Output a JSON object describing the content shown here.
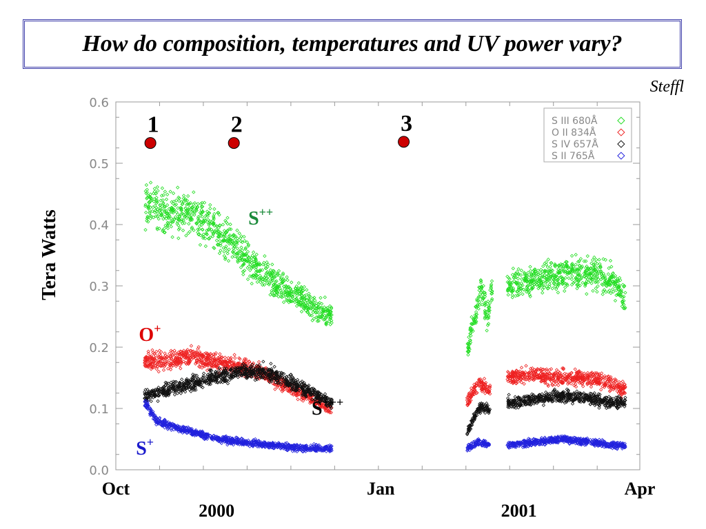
{
  "slide": {
    "title": "How do composition, temperatures and UV power vary?",
    "author": "Steffl"
  },
  "chart_data": {
    "type": "scatter",
    "ylabel": "Tera Watts",
    "ylim": [
      0.0,
      0.6
    ],
    "yticks": [
      "0.0",
      "0.1",
      "0.2",
      "0.3",
      "0.4",
      "0.5",
      "0.6"
    ],
    "x_unit": "day since 1 Oct 2000",
    "xlim": [
      0,
      182
    ],
    "xticks": [
      {
        "day": 0,
        "label": "Oct"
      },
      {
        "day": 92,
        "label": "Jan"
      },
      {
        "day": 182,
        "label": "Apr"
      }
    ],
    "year_labels": [
      {
        "day": 35,
        "label": "2000"
      },
      {
        "day": 140,
        "label": "2001"
      }
    ],
    "legend": {
      "placement": "top-right",
      "entries": [
        {
          "text": "S  III  680Å",
          "color": "#22dd22"
        },
        {
          "text": "O  II  834Å",
          "color": "#ee2222"
        },
        {
          "text": "S  IV  657Å",
          "color": "#111111"
        },
        {
          "text": "S  II  765Å",
          "color": "#2222dd"
        }
      ]
    },
    "event_markers": [
      {
        "label": "1",
        "day": 12,
        "value": 0.533
      },
      {
        "label": "2",
        "day": 41,
        "value": 0.533
      },
      {
        "label": "3",
        "day": 100,
        "value": 0.535
      }
    ],
    "series_labels": [
      {
        "text": "S",
        "sup": "++",
        "color": "#1a8a3a",
        "day": 46,
        "value": 0.4
      },
      {
        "text": "O",
        "sup": "+",
        "color": "#dd0000",
        "day": 8,
        "value": 0.21
      },
      {
        "text": "S",
        "sup": "+++",
        "color": "#000000",
        "day": 68,
        "value": 0.09
      },
      {
        "text": "S",
        "sup": "+",
        "color": "#1a1acc",
        "day": 7,
        "value": 0.025
      }
    ],
    "series": [
      {
        "name": "S III 680Å",
        "color": "#22dd22",
        "segments": [
          {
            "x": [
              10,
              13,
              18,
              25,
              33,
              40,
              48,
              56,
              64,
              70,
              75
            ],
            "y": [
              0.43,
              0.43,
              0.42,
              0.42,
              0.4,
              0.37,
              0.33,
              0.3,
              0.28,
              0.26,
              0.25
            ]
          },
          {
            "x": [
              122,
              125,
              127,
              129,
              131
            ],
            "y": [
              0.19,
              0.26,
              0.3,
              0.24,
              0.31
            ]
          },
          {
            "x": [
              136,
              145,
              155,
              165,
              172,
              177
            ],
            "y": [
              0.3,
              0.31,
              0.32,
              0.32,
              0.31,
              0.28
            ]
          }
        ]
      },
      {
        "name": "O II 834Å",
        "color": "#ee2222",
        "segments": [
          {
            "x": [
              10,
              18,
              26,
              34,
              42,
              50,
              58,
              66,
              75
            ],
            "y": [
              0.18,
              0.178,
              0.185,
              0.175,
              0.17,
              0.16,
              0.14,
              0.12,
              0.1
            ]
          },
          {
            "x": [
              122,
              126,
              130
            ],
            "y": [
              0.11,
              0.14,
              0.13
            ]
          },
          {
            "x": [
              136,
              145,
              155,
              165,
              172,
              177
            ],
            "y": [
              0.15,
              0.155,
              0.15,
              0.15,
              0.14,
              0.13
            ]
          }
        ]
      },
      {
        "name": "S IV 657Å",
        "color": "#111111",
        "segments": [
          {
            "x": [
              10,
              18,
              26,
              34,
              42,
              50,
              58,
              66,
              75
            ],
            "y": [
              0.12,
              0.13,
              0.14,
              0.15,
              0.16,
              0.16,
              0.15,
              0.13,
              0.11
            ]
          },
          {
            "x": [
              122,
              126,
              130
            ],
            "y": [
              0.06,
              0.1,
              0.1
            ]
          },
          {
            "x": [
              136,
              145,
              155,
              165,
              172,
              177
            ],
            "y": [
              0.11,
              0.115,
              0.12,
              0.115,
              0.11,
              0.11
            ]
          }
        ]
      },
      {
        "name": "S II 765Å",
        "color": "#2222dd",
        "segments": [
          {
            "x": [
              10,
              14,
              20,
              28,
              36,
              44,
              55,
              65,
              75
            ],
            "y": [
              0.11,
              0.08,
              0.07,
              0.06,
              0.05,
              0.045,
              0.04,
              0.035,
              0.035
            ]
          },
          {
            "x": [
              122,
              126,
              130
            ],
            "y": [
              0.035,
              0.045,
              0.04
            ]
          },
          {
            "x": [
              136,
              145,
              155,
              165,
              172,
              177
            ],
            "y": [
              0.04,
              0.045,
              0.05,
              0.045,
              0.04,
              0.04
            ]
          }
        ]
      }
    ]
  }
}
